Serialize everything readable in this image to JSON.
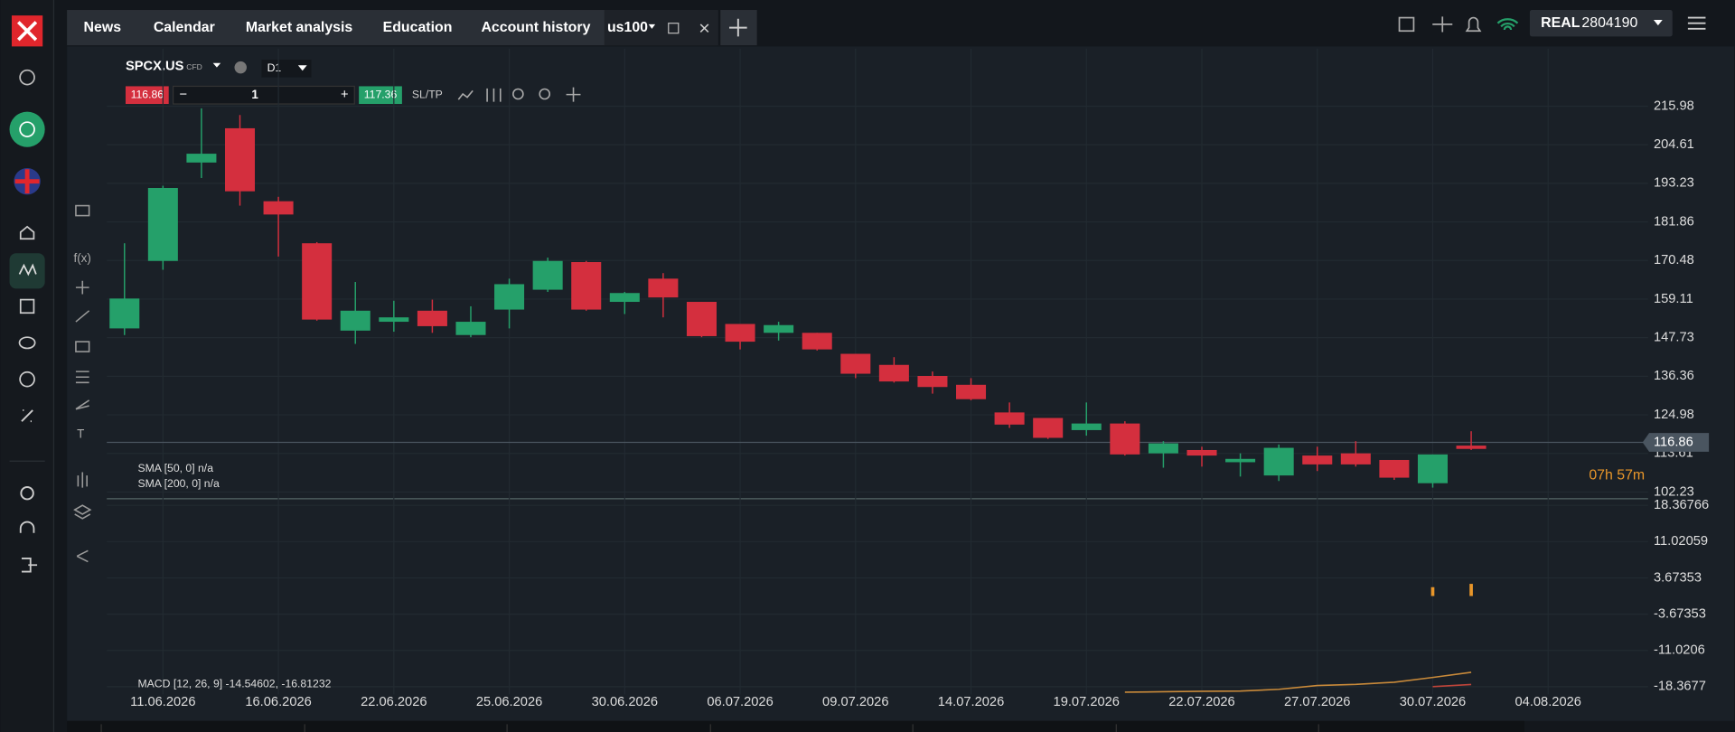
{
  "nav": {
    "tabs": [
      "News",
      "Calendar",
      "Market analysis",
      "Education",
      "Account history"
    ],
    "active_tab": "us100"
  },
  "account": {
    "type": "REAL",
    "number": "2804190"
  },
  "instrument": {
    "symbol": "SPCX.US",
    "kind": "CFD",
    "timeframe": "D1",
    "bid": "116.86",
    "volume": "1",
    "ask": "117.36",
    "sltp": "SL/TP"
  },
  "indicators": [
    "SMA [50, 0] n/a",
    "SMA [200, 0] n/a"
  ],
  "timer": "07h 57m",
  "chart_data": [
    {
      "type": "candlestick",
      "categories": [
        null,
        "11.06.2026",
        null,
        null,
        "16.06.2026",
        null,
        null,
        "22.06.2026",
        null,
        null,
        "25.06.2026",
        null,
        null,
        "30.06.2026",
        null,
        null,
        "06.07.2026",
        null,
        null,
        "09.07.2026",
        null,
        null,
        "14.07.2026",
        null,
        null,
        "19.07.2026",
        null,
        null,
        "22.07.2026",
        null,
        null,
        "27.07.2026",
        null,
        null,
        "30.07.2026",
        null,
        null,
        "04.08.2026"
      ],
      "open": [
        150.46,
        170.35,
        199.36,
        209.46,
        187.95,
        175.56,
        149.81,
        152.42,
        155.68,
        148.51,
        156.01,
        161.87,
        170.02,
        158.29,
        165.13,
        158.29,
        151.77,
        149.16,
        149.16,
        142.97,
        139.71,
        136.45,
        133.84,
        125.69,
        124.06,
        120.48,
        122.43,
        113.63,
        114.61,
        111.02,
        107.11,
        112.98,
        113.63,
        111.68,
        104.83,
        115.91,
        null,
        null
      ],
      "high": [
        175.56,
        192.51,
        215.33,
        213.37,
        189.25,
        175.89,
        164.15,
        158.61,
        158.94,
        156.98,
        165.13,
        171.33,
        170.35,
        161.22,
        166.76,
        158.29,
        151.77,
        152.42,
        149.16,
        142.97,
        141.99,
        137.75,
        135.8,
        128.63,
        124.06,
        128.63,
        123.09,
        117.22,
        115.59,
        113.63,
        116.24,
        115.59,
        117.22,
        111.68,
        113.31,
        120.15,
        null,
        null
      ],
      "low": [
        148.5,
        167.74,
        194.79,
        186.65,
        171.65,
        152.75,
        145.9,
        149.49,
        149.16,
        147.86,
        150.46,
        161.22,
        155.68,
        154.7,
        153.72,
        147.86,
        144.27,
        146.88,
        143.95,
        135.8,
        134.49,
        131.23,
        129.28,
        121.13,
        117.87,
        118.85,
        112.98,
        109.4,
        109.72,
        106.79,
        105.48,
        108.42,
        109.72,
        105.81,
        103.53,
        114.61,
        null,
        null
      ],
      "close": [
        159.27,
        191.86,
        201.96,
        190.88,
        184.04,
        153.07,
        155.68,
        153.72,
        151.12,
        152.42,
        163.5,
        170.35,
        156.01,
        160.89,
        159.59,
        148.18,
        146.55,
        151.44,
        144.27,
        137.1,
        134.82,
        133.19,
        129.6,
        122.11,
        118.2,
        122.43,
        113.31,
        116.57,
        112.98,
        112.0,
        115.26,
        110.37,
        110.37,
        106.46,
        113.31,
        114.94,
        null,
        null
      ],
      "up_color": "#25a06a",
      "down_color": "#d42f3e",
      "current_price": 116.86,
      "ylim": [
        100.59,
        232.93
      ],
      "yticks": [
        215.98,
        204.61,
        193.23,
        181.86,
        170.48,
        159.11,
        147.73,
        136.36,
        124.98,
        113.61,
        102.23
      ],
      "grid": true
    },
    {
      "type": "macd",
      "label": "MACD [12, 26, 9] -14.54602, -16.81232",
      "histogram": {
        "color": "#e8962a",
        "values": [
          null,
          null,
          null,
          null,
          null,
          null,
          null,
          null,
          null,
          null,
          null,
          null,
          null,
          null,
          null,
          null,
          null,
          null,
          null,
          null,
          null,
          null,
          null,
          null,
          null,
          null,
          null,
          null,
          null,
          null,
          null,
          null,
          null,
          null,
          1.79,
          2.46,
          null,
          null
        ]
      },
      "series": [
        {
          "color": "#c98a3a",
          "values": [
            null,
            null,
            null,
            null,
            null,
            null,
            null,
            null,
            null,
            null,
            null,
            null,
            null,
            null,
            null,
            null,
            null,
            null,
            null,
            null,
            null,
            null,
            null,
            null,
            null,
            null,
            -19.49,
            -19.4,
            -19.3,
            -19.26,
            -18.9,
            -18.14,
            -17.9,
            -17.47,
            -16.5,
            -15.46,
            null,
            null
          ]
        },
        {
          "color": "#c0453a",
          "values": [
            null,
            null,
            null,
            null,
            null,
            null,
            null,
            null,
            null,
            null,
            null,
            null,
            null,
            null,
            null,
            null,
            null,
            null,
            null,
            null,
            null,
            null,
            null,
            null,
            null,
            null,
            null,
            null,
            null,
            null,
            null,
            null,
            null,
            null,
            -18.37,
            -17.92,
            null,
            null
          ]
        }
      ],
      "ylim": [
        -20.83,
        19.49
      ],
      "yticks": [
        18.36766,
        11.02059,
        3.67353,
        -3.67353,
        -11.0206,
        -18.3677
      ]
    }
  ]
}
